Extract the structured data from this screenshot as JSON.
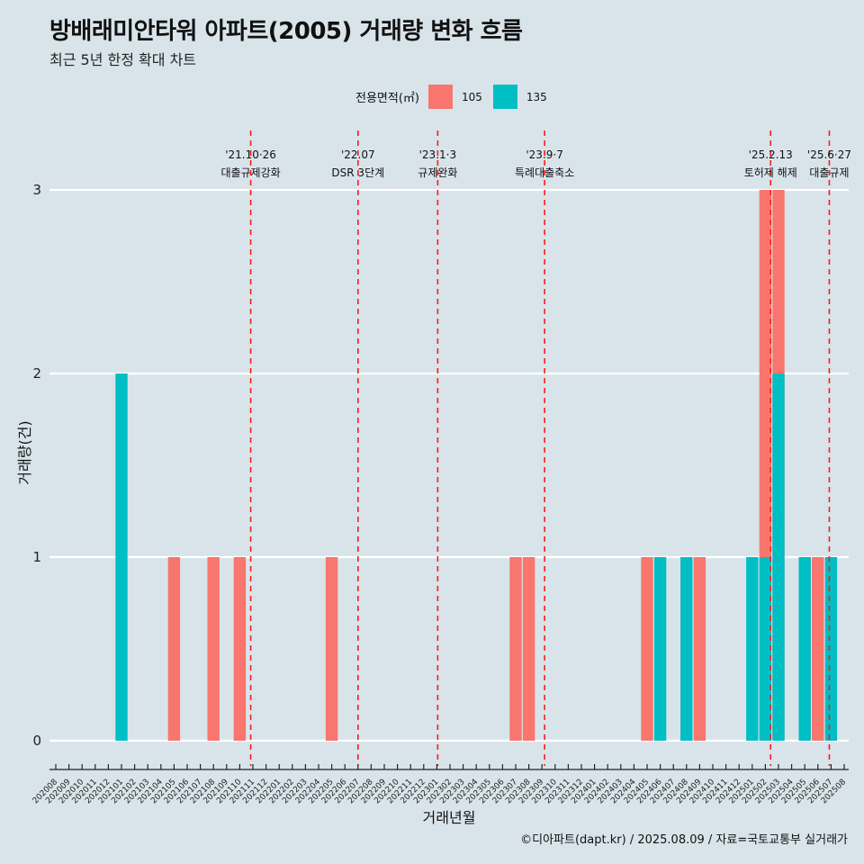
{
  "header": {
    "title": "방배래미안타워 아파트(2005) 거래량 변화 흐름",
    "subtitle": "최근 5년 한정 확대 차트"
  },
  "legend": {
    "title": "전용면적(㎡)",
    "items": [
      {
        "label": "105",
        "color": "#F8766D"
      },
      {
        "label": "135",
        "color": "#00BFC4"
      }
    ]
  },
  "caption": "©디아파트(dapt.kr) / 2025.08.09 / 자료=국토교통부 실거래가",
  "chart_data": {
    "type": "bar",
    "xlabel": "거래년월",
    "ylabel": "거래량(건)",
    "ylim": [
      0,
      3
    ],
    "yticks": [
      0,
      1,
      2,
      3
    ],
    "grid": true,
    "legend_position": "top",
    "categories": [
      "202008",
      "202009",
      "202010",
      "202011",
      "202012",
      "202101",
      "202102",
      "202103",
      "202104",
      "202105",
      "202106",
      "202107",
      "202108",
      "202109",
      "202110",
      "202111",
      "202112",
      "202201",
      "202202",
      "202203",
      "202204",
      "202205",
      "202206",
      "202207",
      "202208",
      "202209",
      "202210",
      "202211",
      "202212",
      "202301",
      "202302",
      "202303",
      "202304",
      "202305",
      "202306",
      "202307",
      "202308",
      "202309",
      "202310",
      "202311",
      "202312",
      "202401",
      "202402",
      "202403",
      "202404",
      "202405",
      "202406",
      "202407",
      "202408",
      "202409",
      "202410",
      "202411",
      "202412",
      "202501",
      "202502",
      "202503",
      "202504",
      "202505",
      "202506",
      "202507",
      "202508"
    ],
    "bars": [
      {
        "month": "202101",
        "series": "135",
        "value": 2
      },
      {
        "month": "202105",
        "series": "105",
        "value": 1
      },
      {
        "month": "202108",
        "series": "105",
        "value": 1
      },
      {
        "month": "202110",
        "series": "105",
        "value": 1
      },
      {
        "month": "202205",
        "series": "105",
        "value": 1
      },
      {
        "month": "202307",
        "series": "105",
        "value": 1
      },
      {
        "month": "202308",
        "series": "105",
        "value": 1
      },
      {
        "month": "202405",
        "series": "105",
        "value": 1
      },
      {
        "month": "202406",
        "series": "135",
        "value": 1
      },
      {
        "month": "202408",
        "series": "105",
        "value": 1
      },
      {
        "month": "202408",
        "series": "135",
        "value": 1
      },
      {
        "month": "202409",
        "series": "105",
        "value": 1
      },
      {
        "month": "202501",
        "series": "135",
        "value": 1
      },
      {
        "month": "202502",
        "series": "105",
        "value": 3
      },
      {
        "month": "202502",
        "series": "135",
        "value": 1
      },
      {
        "month": "202503",
        "series": "105",
        "value": 3
      },
      {
        "month": "202503",
        "series": "135",
        "value": 2
      },
      {
        "month": "202505",
        "series": "105",
        "value": 1
      },
      {
        "month": "202505",
        "series": "135",
        "value": 1
      },
      {
        "month": "202506",
        "series": "105",
        "value": 1
      },
      {
        "month": "202507",
        "series": "135",
        "value": 1
      }
    ],
    "annotations": [
      {
        "date": "2021-10-26",
        "line1": "'21.10·26",
        "line2": "대출규제강화"
      },
      {
        "date": "2022-07-01",
        "line1": "'22.07",
        "line2": "DSR 3단계"
      },
      {
        "date": "2023-01-03",
        "line1": "'23.1·3",
        "line2": "규제완화"
      },
      {
        "date": "2023-09-07",
        "line1": "'23.9·7",
        "line2": "특례대출축소"
      },
      {
        "date": "2025-02-13",
        "line1": "'25.2.13",
        "line2": "토허제 해제"
      },
      {
        "date": "2025-06-27",
        "line1": "'25.6·27",
        "line2": "대출규제"
      }
    ]
  }
}
